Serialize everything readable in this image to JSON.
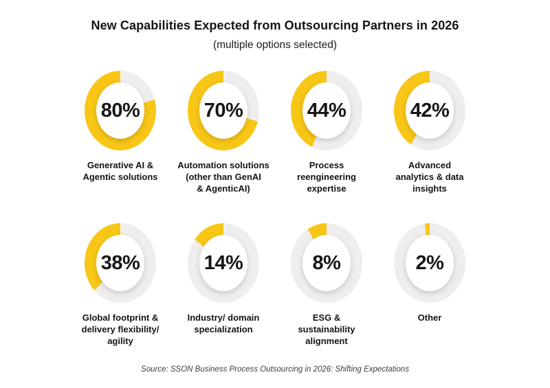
{
  "header": {
    "title": "New Capabilities Expected from Outsourcing Partners in 2026",
    "subtitle": "(multiple options selected)"
  },
  "footer": {
    "source": "Source: SSON Business Process Outsourcing in 2026: Shifting Expectations"
  },
  "chart_data": {
    "type": "pie",
    "variant": "donut-grid",
    "title": "New Capabilities Expected from Outsourcing Partners in 2026",
    "subtitle": "(multiple options selected)",
    "unit": "%",
    "fill_direction": "counterclockwise-from-top",
    "legend": "none",
    "colors": {
      "fill": "#F8C616",
      "track": "#EFEEED",
      "value_text": "#161616"
    },
    "items": [
      {
        "label": "Generative AI &\nAgentic solutions",
        "value": 80,
        "display": "80%"
      },
      {
        "label": "Automation solutions\n(other than GenAI\n& AgenticAI)",
        "value": 70,
        "display": "70%"
      },
      {
        "label": "Process\nreengineering\nexpertise",
        "value": 44,
        "display": "44%"
      },
      {
        "label": "Advanced\nanalytics & data\ninsights",
        "value": 42,
        "display": "42%"
      },
      {
        "label": "Global footprint &\ndelivery flexibility/\nagility",
        "value": 38,
        "display": "38%"
      },
      {
        "label": "Industry/ domain\nspecialization",
        "value": 14,
        "display": "14%"
      },
      {
        "label": "ESG &\nsustainability\nalignment",
        "value": 8,
        "display": "8%"
      },
      {
        "label": "Other",
        "value": 2,
        "display": "2%"
      }
    ],
    "source": "Source: SSON Business Process Outsourcing in 2026: Shifting Expectations"
  }
}
